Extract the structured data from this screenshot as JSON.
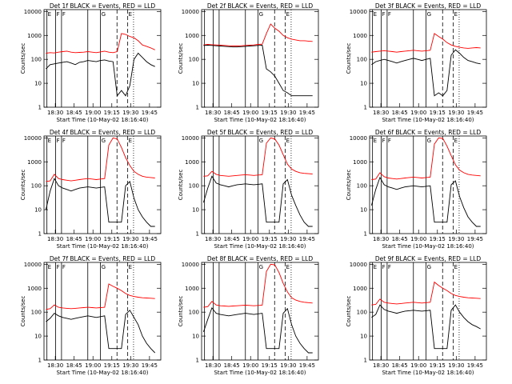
{
  "chart_data": [
    {
      "type": "line",
      "title": "Det 1f BLACK = Events, RED = LLD",
      "ylabel": "Counts/sec",
      "xlabel": "Start Time (10-May-02 18:16:40)",
      "xticks": [
        "18:30",
        "18:45",
        "19:00",
        "19:15",
        "19:30",
        "19:45"
      ],
      "yticks": [
        "1",
        "10",
        "100",
        "1000",
        "10000"
      ],
      "ylim": [
        1,
        12000
      ],
      "xlim": [
        0,
        120
      ],
      "markers": [
        {
          "x": 3,
          "l": "E"
        },
        {
          "x": 12,
          "l": "F"
        },
        {
          "x": 18,
          "l": "F"
        },
        {
          "x": 58,
          "l": "G"
        },
        {
          "x": 86,
          "l": "E"
        }
      ],
      "solid": [
        3,
        12,
        18,
        45,
        58
      ],
      "dashed": [
        75,
        86
      ],
      "dotted": [
        92
      ],
      "series": [
        {
          "color": "#ff0000",
          "values": [
            180,
            190,
            185,
            200,
            210,
            220,
            200,
            190,
            195,
            200,
            210,
            200,
            190,
            205,
            220,
            200,
            190,
            210,
            1200,
            1100,
            900,
            800,
            600,
            400,
            350,
            300,
            250
          ]
        },
        {
          "color": "#000000",
          "values": [
            40,
            60,
            65,
            70,
            75,
            80,
            70,
            60,
            75,
            80,
            90,
            85,
            80,
            90,
            95,
            85,
            80,
            3,
            5,
            3,
            8,
            100,
            180,
            120,
            80,
            60,
            50
          ]
        }
      ]
    },
    {
      "type": "line",
      "title": "Det 2f BLACK = Events, RED = LLD",
      "ylabel": "Counts/sec",
      "xlabel": "Start Time (10-May-02 18:16:40)",
      "xticks": [
        "18:30",
        "18:45",
        "19:00",
        "19:15",
        "19:30",
        "19:45"
      ],
      "yticks": [
        "1",
        "10",
        "100",
        "1000",
        "10000"
      ],
      "ylim": [
        1,
        12000
      ],
      "xlim": [
        0,
        120
      ],
      "markers": [
        {
          "x": 58,
          "l": "G"
        },
        {
          "x": 86,
          "l": "E"
        }
      ],
      "solid": [
        3,
        12,
        18,
        45,
        58
      ],
      "dashed": [
        75,
        86
      ],
      "dotted": [
        92
      ],
      "series": [
        {
          "color": "#ff0000",
          "values": [
            400,
            420,
            410,
            400,
            390,
            380,
            370,
            360,
            360,
            370,
            380,
            390,
            400,
            420,
            430,
            1200,
            3000,
            2000,
            1500,
            1000,
            800,
            700,
            650,
            600,
            600,
            580,
            560
          ]
        },
        {
          "color": "#000000",
          "values": [
            380,
            390,
            380,
            370,
            360,
            350,
            340,
            330,
            330,
            340,
            350,
            360,
            370,
            380,
            390,
            40,
            30,
            20,
            10,
            5,
            4,
            3,
            3,
            3,
            3,
            3,
            3
          ]
        }
      ]
    },
    {
      "type": "line",
      "title": "Det 3f BLACK = Events, RED = LLD",
      "ylabel": "Counts/sec",
      "xlabel": "Start Time (10-May-02 18:16:40)",
      "xticks": [
        "18:30",
        "18:45",
        "19:00",
        "19:15",
        "19:30",
        "19:45"
      ],
      "yticks": [
        "1",
        "10",
        "100",
        "1000",
        "10000"
      ],
      "ylim": [
        1,
        12000
      ],
      "xlim": [
        0,
        120
      ],
      "markers": [
        {
          "x": 3,
          "l": "E"
        },
        {
          "x": 12,
          "l": "F"
        },
        {
          "x": 18,
          "l": "F"
        },
        {
          "x": 58,
          "l": "G"
        },
        {
          "x": 86,
          "l": "E"
        }
      ],
      "solid": [
        3,
        12,
        18,
        45,
        58
      ],
      "dashed": [
        75,
        86
      ],
      "dotted": [
        92
      ],
      "series": [
        {
          "color": "#ff0000",
          "values": [
            200,
            210,
            220,
            230,
            220,
            210,
            200,
            210,
            220,
            230,
            240,
            230,
            220,
            230,
            240,
            1200,
            900,
            700,
            500,
            400,
            350,
            320,
            300,
            290,
            300,
            310,
            300
          ]
        },
        {
          "color": "#000000",
          "values": [
            60,
            80,
            90,
            100,
            90,
            80,
            70,
            80,
            90,
            100,
            110,
            100,
            90,
            100,
            110,
            3,
            4,
            3,
            5,
            150,
            250,
            180,
            120,
            90,
            80,
            70,
            65
          ]
        }
      ]
    },
    {
      "type": "line",
      "title": "Det 4f BLACK = Events, RED = LLD",
      "ylabel": "Counts/sec",
      "xlabel": "Start Time (10-May-02 18:16:40)",
      "xticks": [
        "18:30",
        "18:45",
        "19:00",
        "19:15",
        "19:30",
        "19:45"
      ],
      "yticks": [
        "1",
        "10",
        "100",
        "1000",
        "10000"
      ],
      "ylim": [
        1,
        12000
      ],
      "xlim": [
        0,
        120
      ],
      "markers": [
        {
          "x": 3,
          "l": "E"
        },
        {
          "x": 12,
          "l": "F"
        },
        {
          "x": 18,
          "l": "F"
        },
        {
          "x": 58,
          "l": "G"
        },
        {
          "x": 86,
          "l": "E"
        }
      ],
      "solid": [
        3,
        12,
        18,
        45,
        58
      ],
      "dashed": [
        75,
        86
      ],
      "dotted": [
        92
      ],
      "series": [
        {
          "color": "#ff0000",
          "values": [
            150,
            160,
            300,
            200,
            180,
            170,
            160,
            170,
            180,
            190,
            200,
            190,
            180,
            190,
            200,
            5000,
            10000,
            9000,
            4000,
            1500,
            700,
            400,
            300,
            250,
            230,
            220,
            210
          ]
        },
        {
          "color": "#000000",
          "values": [
            10,
            60,
            200,
            100,
            80,
            70,
            60,
            70,
            80,
            85,
            90,
            85,
            80,
            85,
            90,
            3,
            3,
            3,
            3,
            100,
            150,
            30,
            10,
            5,
            3,
            2,
            2
          ]
        }
      ]
    },
    {
      "type": "line",
      "title": "Det 5f BLACK = Events, RED = LLD",
      "ylabel": "Counts/sec",
      "xlabel": "Start Time (10-May-02 18:16:40)",
      "xticks": [
        "18:30",
        "18:45",
        "19:00",
        "19:15",
        "19:30",
        "19:45"
      ],
      "yticks": [
        "1",
        "10",
        "100",
        "1000",
        "10000"
      ],
      "ylim": [
        1,
        12000
      ],
      "xlim": [
        0,
        120
      ],
      "markers": [
        {
          "x": 58,
          "l": "G"
        },
        {
          "x": 86,
          "l": "E"
        }
      ],
      "solid": [
        3,
        12,
        18,
        45,
        58
      ],
      "dashed": [
        75,
        86
      ],
      "dotted": [
        92
      ],
      "series": [
        {
          "color": "#ff0000",
          "values": [
            250,
            260,
            400,
            300,
            270,
            260,
            250,
            260,
            270,
            280,
            290,
            280,
            270,
            280,
            290,
            6000,
            10000,
            9000,
            5000,
            2000,
            800,
            500,
            400,
            350,
            330,
            320,
            310
          ]
        },
        {
          "color": "#000000",
          "values": [
            20,
            80,
            250,
            130,
            110,
            100,
            90,
            100,
            110,
            115,
            120,
            115,
            110,
            115,
            120,
            3,
            3,
            3,
            3,
            120,
            180,
            40,
            15,
            6,
            3,
            2,
            2
          ]
        }
      ]
    },
    {
      "type": "line",
      "title": "Det 6f BLACK = Events, RED = LLD",
      "ylabel": "Counts/sec",
      "xlabel": "Start Time (10-May-02 18:16:40)",
      "xticks": [
        "18:30",
        "18:45",
        "19:00",
        "19:15",
        "19:30",
        "19:45"
      ],
      "yticks": [
        "1",
        "10",
        "100",
        "1000",
        "10000"
      ],
      "ylim": [
        1,
        12000
      ],
      "xlim": [
        0,
        120
      ],
      "markers": [
        {
          "x": 3,
          "l": "E"
        },
        {
          "x": 12,
          "l": "F"
        },
        {
          "x": 18,
          "l": "F"
        },
        {
          "x": 58,
          "l": "G"
        },
        {
          "x": 86,
          "l": "E"
        }
      ],
      "solid": [
        3,
        12,
        18,
        45,
        58
      ],
      "dashed": [
        75,
        86
      ],
      "dotted": [
        92
      ],
      "series": [
        {
          "color": "#ff0000",
          "values": [
            180,
            190,
            350,
            240,
            210,
            200,
            190,
            200,
            210,
            220,
            230,
            220,
            210,
            220,
            230,
            5500,
            10000,
            9500,
            4500,
            1800,
            750,
            450,
            350,
            300,
            280,
            270,
            260
          ]
        },
        {
          "color": "#000000",
          "values": [
            15,
            70,
            220,
            110,
            90,
            80,
            70,
            80,
            90,
            95,
            100,
            95,
            90,
            95,
            100,
            3,
            3,
            3,
            3,
            110,
            160,
            35,
            12,
            5,
            3,
            2,
            2
          ]
        }
      ]
    },
    {
      "type": "line",
      "title": "Det 7f BLACK = Events, RED = LLD",
      "ylabel": "Counts/sec",
      "xlabel": "Start Time (10-May-02 18:16:40)",
      "xticks": [
        "18:30",
        "18:45",
        "19:00",
        "19:15",
        "19:30",
        "19:45"
      ],
      "yticks": [
        "1",
        "10",
        "100",
        "1000",
        "10000"
      ],
      "ylim": [
        1,
        12000
      ],
      "xlim": [
        0,
        120
      ],
      "markers": [
        {
          "x": 3,
          "l": "E"
        },
        {
          "x": 12,
          "l": "F"
        },
        {
          "x": 18,
          "l": "F"
        },
        {
          "x": 58,
          "l": "G"
        },
        {
          "x": 86,
          "l": "E"
        }
      ],
      "solid": [
        3,
        12,
        18,
        45,
        58
      ],
      "dashed": [
        75,
        86
      ],
      "dotted": [
        92
      ],
      "series": [
        {
          "color": "#ff0000",
          "values": [
            130,
            140,
            200,
            160,
            150,
            145,
            140,
            145,
            150,
            155,
            160,
            155,
            150,
            155,
            160,
            1500,
            1200,
            1000,
            800,
            600,
            500,
            450,
            420,
            400,
            390,
            380,
            370
          ]
        },
        {
          "color": "#000000",
          "values": [
            40,
            55,
            90,
            70,
            60,
            55,
            50,
            55,
            60,
            65,
            70,
            65,
            60,
            65,
            70,
            3,
            3,
            3,
            3,
            80,
            120,
            60,
            30,
            10,
            5,
            3,
            2
          ]
        }
      ]
    },
    {
      "type": "line",
      "title": "Det 8f BLACK = Events, RED = LLD",
      "ylabel": "Counts/sec",
      "xlabel": "Start Time (10-May-02 18:16:40)",
      "xticks": [
        "18:30",
        "18:45",
        "19:00",
        "19:15",
        "19:30",
        "19:45"
      ],
      "yticks": [
        "1",
        "10",
        "100",
        "1000",
        "10000"
      ],
      "ylim": [
        1,
        12000
      ],
      "xlim": [
        0,
        120
      ],
      "markers": [
        {
          "x": 58,
          "l": "G"
        },
        {
          "x": 86,
          "l": "E"
        }
      ],
      "solid": [
        3,
        12,
        18,
        45,
        58
      ],
      "dashed": [
        75,
        86
      ],
      "dotted": [
        92
      ],
      "series": [
        {
          "color": "#ff0000",
          "values": [
            160,
            170,
            280,
            200,
            185,
            180,
            175,
            180,
            185,
            190,
            195,
            190,
            185,
            190,
            195,
            5000,
            10000,
            9500,
            4500,
            1600,
            700,
            400,
            320,
            280,
            260,
            250,
            240
          ]
        },
        {
          "color": "#000000",
          "values": [
            15,
            50,
            150,
            90,
            80,
            75,
            70,
            75,
            80,
            85,
            90,
            85,
            80,
            85,
            90,
            3,
            3,
            3,
            3,
            90,
            140,
            30,
            10,
            5,
            3,
            2,
            2
          ]
        }
      ]
    },
    {
      "type": "line",
      "title": "Det 9f BLACK = Events, RED = LLD",
      "ylabel": "Counts/sec",
      "xlabel": "Start Time (10-May-02 18:16:40)",
      "xticks": [
        "18:30",
        "18:45",
        "19:00",
        "19:15",
        "19:30",
        "19:45"
      ],
      "yticks": [
        "1",
        "10",
        "100",
        "1000",
        "10000"
      ],
      "ylim": [
        1,
        12000
      ],
      "xlim": [
        0,
        120
      ],
      "markers": [
        {
          "x": 3,
          "l": "E"
        },
        {
          "x": 12,
          "l": "F"
        },
        {
          "x": 18,
          "l": "F"
        },
        {
          "x": 58,
          "l": "G"
        },
        {
          "x": 86,
          "l": "E"
        }
      ],
      "solid": [
        3,
        12,
        18,
        45,
        58
      ],
      "dashed": [
        75,
        86
      ],
      "dotted": [
        92
      ],
      "series": [
        {
          "color": "#ff0000",
          "values": [
            200,
            210,
            350,
            260,
            240,
            230,
            220,
            230,
            240,
            250,
            260,
            250,
            240,
            250,
            260,
            1800,
            1300,
            1000,
            800,
            600,
            500,
            450,
            420,
            400,
            390,
            380,
            370
          ]
        },
        {
          "color": "#000000",
          "values": [
            60,
            80,
            200,
            130,
            110,
            100,
            90,
            100,
            110,
            115,
            120,
            115,
            110,
            115,
            120,
            3,
            3,
            3,
            3,
            120,
            200,
            100,
            60,
            40,
            30,
            25,
            20
          ]
        }
      ]
    }
  ]
}
